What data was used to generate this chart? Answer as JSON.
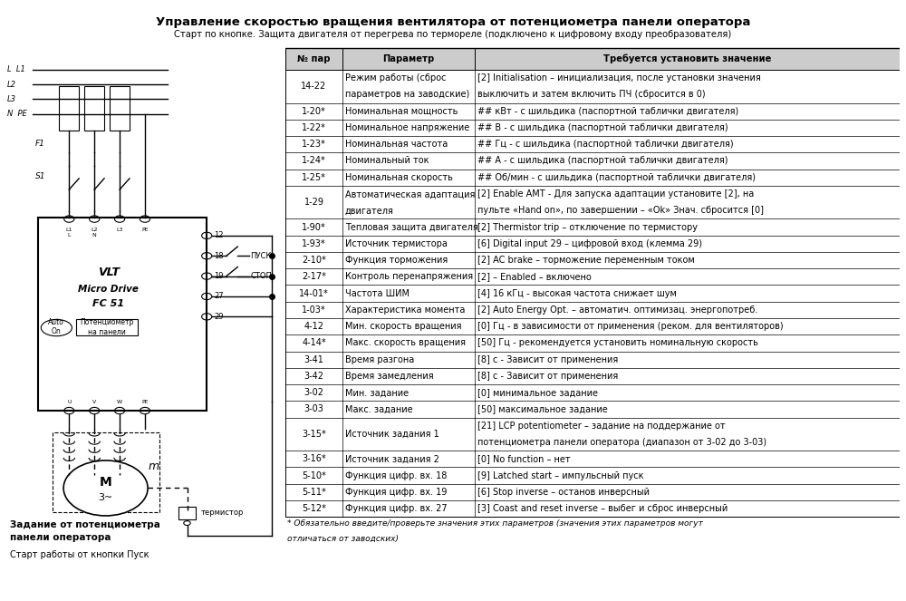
{
  "title": "Управление скоростью вращения вентилятора от потенциометра панели оператора",
  "subtitle": "Старт по кнопке. Защита двигателя от перегрева по термореле (подключено к цифровому входу преобразователя)",
  "col_headers": [
    "№ пар",
    "Параметр",
    "Требуется установить значение"
  ],
  "table_rows": [
    [
      "14-22",
      "Режим работы (сброс\nпараметров на заводские)",
      "[2] Initialisation – инициализация, после установки значения\nвыключить и затем включить ПЧ (сбросится в 0)"
    ],
    [
      "1-20*",
      "Номинальная мощность",
      "## кВт - с шильдика (паспортной таблички двигателя)"
    ],
    [
      "1-22*",
      "Номинальное напряжение",
      "## В - с шильдика (паспортной таблички двигателя)"
    ],
    [
      "1-23*",
      "Номинальная частота",
      "## Гц - с шильдика (паспортной таблички двигателя)"
    ],
    [
      "1-24*",
      "Номинальный ток",
      "## А - с шильдика (паспортной таблички двигателя)"
    ],
    [
      "1-25*",
      "Номинальная скорость",
      "## Об/мин - с шильдика (паспортной таблички двигателя)"
    ],
    [
      "1-29",
      "Автоматическая адаптация\nдвигателя",
      "[2] Enable АМТ - Для запуска адаптации установите [2], на\nпульте «Hand on», по завершении – «Ok» Знач. сбросится [0]"
    ],
    [
      "1-90*",
      "Тепловая защита двигателя",
      "[2] Thermistor trip – отключение по термистору"
    ],
    [
      "1-93*",
      "Источник термистора",
      "[6] Digital input 29 – цифровой вход (клемма 29)"
    ],
    [
      "2-10*",
      "Функция торможения",
      "[2] AC brake – торможение переменным током"
    ],
    [
      "2-17*",
      "Контроль перенапряжения",
      "[2] – Enabled – включено"
    ],
    [
      "14-01*",
      "Частота ШИМ",
      "[4] 16 кГц - высокая частота снижает шум"
    ],
    [
      "1-03*",
      "Характеристика момента",
      "[2] Auto Energy Opt. – автоматич. оптимизац. энергопотреб."
    ],
    [
      "4-12",
      "Мин. скорость вращения",
      "[0] Гц - в зависимости от применения (реком. для вентиляторов)"
    ],
    [
      "4-14*",
      "Макс. скорость вращения",
      "[50] Гц - рекомендуется установить номинальную скорость"
    ],
    [
      "3-41",
      "Время разгона",
      "[8] с - Зависит от применения"
    ],
    [
      "3-42",
      "Время замедления",
      "[8] с - Зависит от применения"
    ],
    [
      "3-02",
      "Мин. задание",
      "[0] минимальное задание"
    ],
    [
      "3-03",
      "Макс. задание",
      "[50] максимальное задание"
    ],
    [
      "3-15*",
      "Источник задания 1",
      "[21] LCP potentiometer – задание на поддержание от\nпотенциометра панели оператора (диапазон от 3-02 до 3-03)"
    ],
    [
      "3-16*",
      "Источник задания 2",
      "[0] No function – нет"
    ],
    [
      "5-10*",
      "Функция цифр. вх. 18",
      "[9] Latched start – импульсный пуск"
    ],
    [
      "5-11*",
      "Функция цифр. вх. 19",
      "[6] Stop inverse – останов инверсный"
    ],
    [
      "5-12*",
      "Функция цифр. вх. 27",
      "[3] Coast and reset inverse – выбег и сброс инверсный"
    ]
  ],
  "footnote": "* Обязательно введите/проверьте значения этих параметров (значения этих параметров могут\nотличаться от заводских)",
  "bg_color": "#ffffff",
  "text_color": "#000000"
}
